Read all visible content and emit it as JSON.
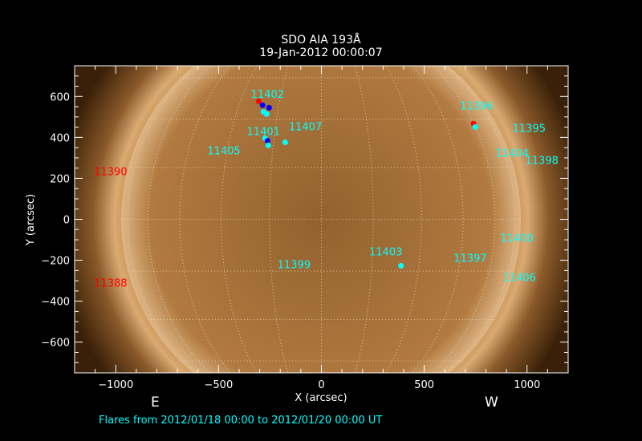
{
  "title": "SDO AIA 193Å",
  "subtitle": "19-Jan-2012 00:00:07",
  "east_label": "E",
  "west_label": "W",
  "footer": "Flares from 2012/01/18 00:00 to 2012/01/20 00:00 UT",
  "colors": {
    "background": "#000000",
    "axes": "#ffffff",
    "region_label": "#00ffff",
    "off_disk_region": "#ff0000",
    "flare_cyan": "#00ffff",
    "flare_blue": "#0000ff",
    "flare_red": "#ff0000",
    "sun": "#b77a3a"
  },
  "chart_data": {
    "type": "scatter",
    "xlabel": "X (arcsec)",
    "ylabel": "Y (arcsec)",
    "xlim": [
      -1200,
      1200
    ],
    "ylim": [
      -750,
      750
    ],
    "xticks": [
      -1000,
      -500,
      0,
      500,
      1000
    ],
    "yticks": [
      -600,
      -400,
      -200,
      0,
      200,
      400,
      600
    ],
    "grid": true,
    "solar_radius_arcsec": 975,
    "regions": [
      {
        "label": "11402",
        "x": -262,
        "y": 612,
        "color": "#00ffff"
      },
      {
        "label": "11407",
        "x": -78,
        "y": 455,
        "color": "#00ffff"
      },
      {
        "label": "11401",
        "x": -282,
        "y": 431,
        "color": "#00ffff"
      },
      {
        "label": "11405",
        "x": -474,
        "y": 337,
        "color": "#00ffff"
      },
      {
        "label": "11390",
        "x": -1025,
        "y": 235,
        "color": "#ff0000"
      },
      {
        "label": "11388",
        "x": -1025,
        "y": -310,
        "color": "#ff0000"
      },
      {
        "label": "11399",
        "x": -133,
        "y": -220,
        "color": "#00ffff"
      },
      {
        "label": "11403",
        "x": 313,
        "y": -157,
        "color": "#00ffff"
      },
      {
        "label": "11397",
        "x": 724,
        "y": -188,
        "color": "#00ffff"
      },
      {
        "label": "11400",
        "x": 951,
        "y": -90,
        "color": "#00ffff"
      },
      {
        "label": "11406",
        "x": 963,
        "y": -282,
        "color": "#00ffff"
      },
      {
        "label": "11396",
        "x": 755,
        "y": 557,
        "color": "#00ffff"
      },
      {
        "label": "11395",
        "x": 1010,
        "y": 447,
        "color": "#00ffff"
      },
      {
        "label": "11404",
        "x": 928,
        "y": 325,
        "color": "#00ffff"
      },
      {
        "label": "11398",
        "x": 1072,
        "y": 290,
        "color": "#00ffff"
      }
    ],
    "flares": [
      {
        "x": -305,
        "y": 576,
        "color": "#ff0000"
      },
      {
        "x": -286,
        "y": 557,
        "color": "#0000ff"
      },
      {
        "x": -254,
        "y": 545,
        "color": "#0000ff"
      },
      {
        "x": -282,
        "y": 525,
        "color": "#00ffff"
      },
      {
        "x": -266,
        "y": 514,
        "color": "#00ffff"
      },
      {
        "x": -274,
        "y": 396,
        "color": "#00ffff"
      },
      {
        "x": -262,
        "y": 384,
        "color": "#0000ff"
      },
      {
        "x": -258,
        "y": 361,
        "color": "#00ffff"
      },
      {
        "x": -176,
        "y": 376,
        "color": "#00ffff"
      },
      {
        "x": 387,
        "y": -227,
        "color": "#00ffff"
      },
      {
        "x": 740,
        "y": 467,
        "color": "#ff0000"
      },
      {
        "x": 748,
        "y": 451,
        "color": "#00ffff"
      }
    ]
  }
}
